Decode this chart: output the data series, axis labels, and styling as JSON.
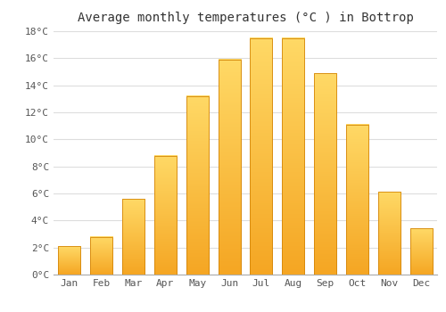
{
  "title": "Average monthly temperatures (°C ) in Bottrop",
  "months": [
    "Jan",
    "Feb",
    "Mar",
    "Apr",
    "May",
    "Jun",
    "Jul",
    "Aug",
    "Sep",
    "Oct",
    "Nov",
    "Dec"
  ],
  "values": [
    2.1,
    2.8,
    5.6,
    8.8,
    13.2,
    15.9,
    17.5,
    17.5,
    14.9,
    11.1,
    6.1,
    3.4
  ],
  "bar_color_bottom": "#F5A623",
  "bar_color_top": "#FFD966",
  "bar_edge_color": "#D4860A",
  "ylim": [
    0,
    18
  ],
  "yticks": [
    0,
    2,
    4,
    6,
    8,
    10,
    12,
    14,
    16,
    18
  ],
  "ytick_labels": [
    "0°C",
    "2°C",
    "4°C",
    "6°C",
    "8°C",
    "10°C",
    "12°C",
    "14°C",
    "16°C",
    "18°C"
  ],
  "background_color": "#ffffff",
  "plot_bg_color": "#ffffff",
  "grid_color": "#dddddd",
  "title_fontsize": 10,
  "tick_fontsize": 8,
  "bar_width": 0.7
}
